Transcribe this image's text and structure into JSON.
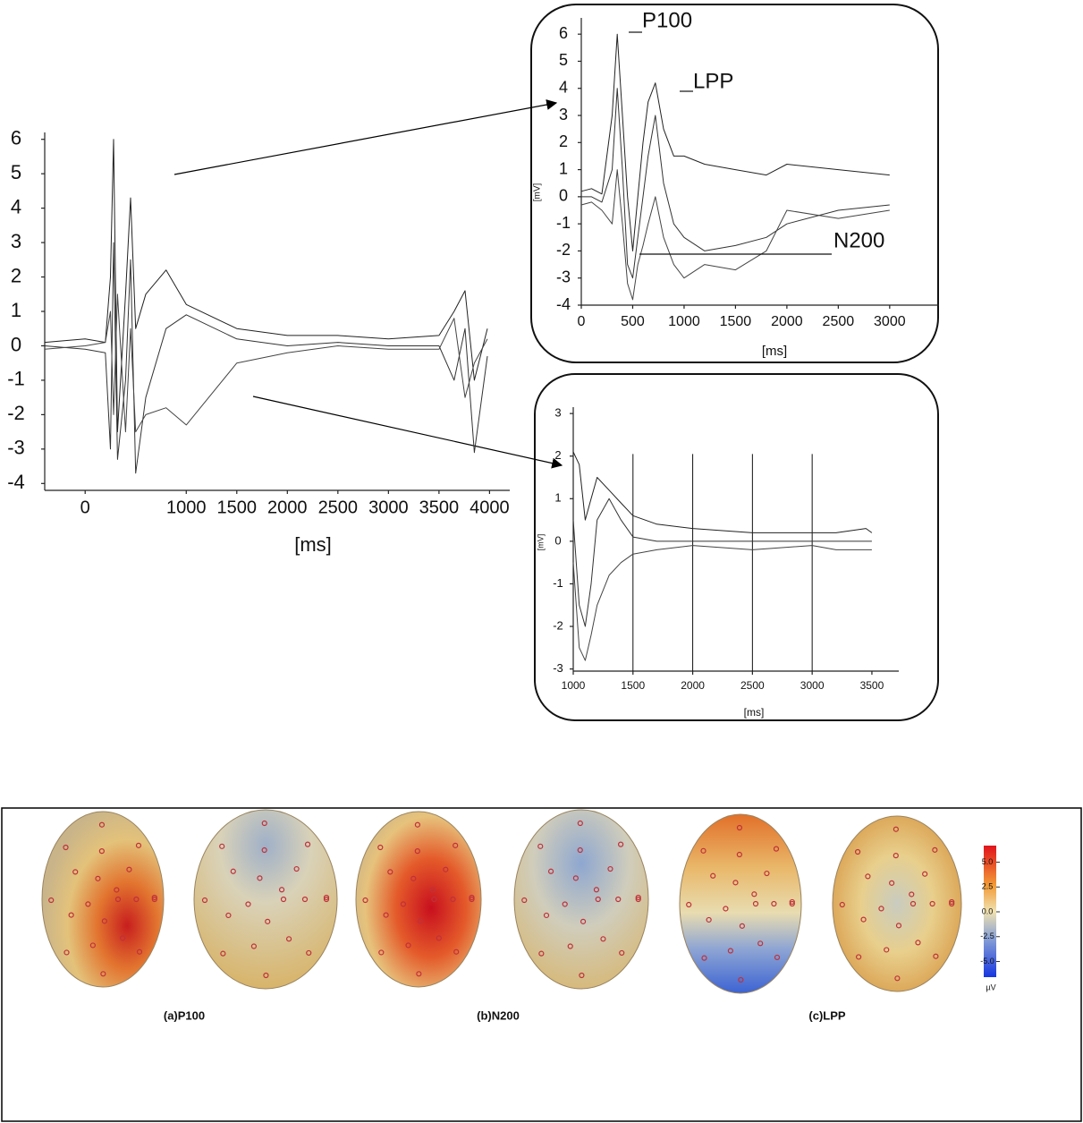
{
  "chart_data": [
    {
      "type": "line",
      "xlabel": "[ms]",
      "x": [
        -400,
        0,
        200,
        250,
        281,
        320,
        400,
        449,
        500,
        600,
        800,
        1000,
        1500,
        2000,
        2500,
        3000,
        3500,
        3650,
        3758,
        3850,
        3979
      ],
      "series": [
        {
          "color": "#222222",
          "values": [
            0.1,
            0.2,
            0.1,
            2.0,
            6.0,
            -2.5,
            1.5,
            4.3,
            0.5,
            1.5,
            2.2,
            1.2,
            0.5,
            0.3,
            0.3,
            0.2,
            0.3,
            1.0,
            1.6,
            -1.0,
            0.5
          ]
        },
        {
          "color": "#333333",
          "values": [
            0.0,
            -0.1,
            -0.2,
            -3.0,
            3.0,
            -3.3,
            -1.0,
            2.5,
            -3.7,
            -1.5,
            0.5,
            0.9,
            0.2,
            0.0,
            0.1,
            0.0,
            0.0,
            -1.0,
            0.5,
            -3.1,
            -0.3
          ]
        },
        {
          "color": "#444444",
          "values": [
            -0.1,
            0.0,
            0.1,
            1.0,
            -2.0,
            1.5,
            -2.5,
            0.5,
            -2.5,
            -2.0,
            -1.8,
            -2.3,
            -0.5,
            -0.2,
            0.0,
            -0.1,
            -0.1,
            0.8,
            -1.5,
            -0.5,
            0.2
          ]
        }
      ],
      "xlim": [
        -400,
        4200
      ],
      "xticks": [
        0,
        1000,
        1500,
        2000,
        2500,
        3000,
        3500,
        4000
      ],
      "ylim": [
        -4.2,
        6.2
      ],
      "yticks": [
        -4,
        -3,
        -2,
        -1,
        0,
        1,
        2,
        3,
        4,
        5,
        6
      ]
    },
    {
      "type": "line",
      "xlabel": "[ms]",
      "ylabel": "[mV]",
      "annotations": [
        "P100",
        "LPP",
        "N200"
      ],
      "x": [
        0,
        100,
        200,
        300,
        350,
        400,
        450,
        500,
        550,
        600,
        650,
        720,
        800,
        900,
        1000,
        1200,
        1500,
        1800,
        2000,
        2500,
        3000
      ],
      "series": [
        {
          "color": "#222222",
          "values": [
            0.2,
            0.3,
            0.1,
            3,
            6,
            3,
            0,
            -2,
            0,
            2,
            3.5,
            4.2,
            2.5,
            1.5,
            1.5,
            1.2,
            1.0,
            0.8,
            1.2,
            1.0,
            0.8
          ]
        },
        {
          "color": "#333333",
          "values": [
            0,
            0,
            -0.2,
            1,
            4,
            1,
            -2.5,
            -3,
            -1.5,
            0,
            1.5,
            3,
            0.5,
            -1,
            -1.5,
            -2,
            -1.8,
            -1.5,
            -1.0,
            -0.5,
            -0.3
          ]
        },
        {
          "color": "#444444",
          "values": [
            -0.3,
            -0.2,
            -0.5,
            -1,
            1,
            -1,
            -3.2,
            -3.8,
            -2.5,
            -1.8,
            -1,
            0,
            -1.5,
            -2.5,
            -3.0,
            -2.5,
            -2.7,
            -2.0,
            -0.5,
            -0.8,
            -0.5
          ]
        }
      ],
      "xlim": [
        0,
        3480
      ],
      "xticks": [
        0,
        500,
        1000,
        1500,
        2000,
        2500,
        3000
      ],
      "ylim": [
        -4,
        6.6
      ],
      "yticks": [
        -4,
        -3,
        -2,
        -1,
        0,
        1,
        2,
        3,
        4,
        5,
        6
      ]
    },
    {
      "type": "line",
      "xlabel": "[ms]",
      "ylabel": "[mV]",
      "x": [
        1000,
        1050,
        1100,
        1150,
        1200,
        1300,
        1400,
        1500,
        1700,
        2000,
        2500,
        3000,
        3200,
        3450,
        3500
      ],
      "series": [
        {
          "color": "#222222",
          "values": [
            2.1,
            1.8,
            0.5,
            1.0,
            1.5,
            1.2,
            0.9,
            0.6,
            0.4,
            0.3,
            0.2,
            0.2,
            0.2,
            0.3,
            0.2
          ]
        },
        {
          "color": "#333333",
          "values": [
            0.5,
            -1.5,
            -2.0,
            -1.0,
            0.5,
            1.0,
            0.5,
            0.1,
            0,
            0,
            0,
            0,
            0,
            0,
            0
          ]
        },
        {
          "color": "#444444",
          "values": [
            -0.5,
            -2.5,
            -2.8,
            -2.2,
            -1.5,
            -0.8,
            -0.5,
            -0.3,
            -0.2,
            -0.1,
            -0.2,
            -0.1,
            -0.2,
            -0.2,
            -0.2
          ]
        }
      ],
      "vlines": [
        1500,
        2000,
        2500,
        3000
      ],
      "xlim": [
        1000,
        3725
      ],
      "xticks": [
        1000,
        1500,
        2000,
        2500,
        3000,
        3500
      ],
      "ylim": [
        -3.05,
        3.15
      ],
      "yticks": [
        -3,
        -2,
        -1,
        0,
        1,
        2,
        3
      ]
    }
  ],
  "topomaps": {
    "labels": [
      "(a)P100",
      "(b)N200",
      "(c)LPP"
    ],
    "unit": "µV",
    "colorbar_ticks": [
      {
        "value": 5,
        "label": "5.0"
      },
      {
        "value": 2.5,
        "label": "2.5"
      },
      {
        "value": 0,
        "label": "0.0"
      },
      {
        "value": -2.5,
        "label": "-2.5"
      },
      {
        "value": -5,
        "label": "-5.0"
      }
    ]
  }
}
